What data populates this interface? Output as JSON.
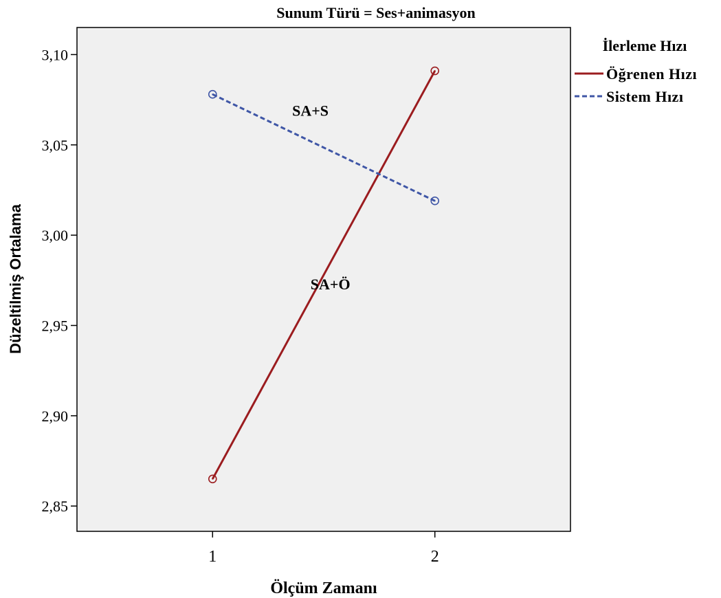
{
  "chart_data": {
    "type": "line",
    "title": "Sunum Türü = Ses+animasyon",
    "xlabel": "Ölçüm Zamanı",
    "ylabel": "Düzeltilmiş Ortalama",
    "categories": [
      "1",
      "2"
    ],
    "x_values": [
      1,
      2
    ],
    "xlim": [
      0.39,
      2.61
    ],
    "ylim": [
      2.836,
      3.115
    ],
    "yticks": [
      2.85,
      2.9,
      2.95,
      3.0,
      3.05,
      3.1
    ],
    "ytick_labels": [
      "2,85",
      "2,90",
      "2,95",
      "3,00",
      "3,05",
      "3,10"
    ],
    "grid": false,
    "legend": {
      "title": "İlerleme Hızı",
      "placement": "right"
    },
    "series": [
      {
        "name": "Öğrenen Hızı",
        "values": [
          2.865,
          3.091
        ],
        "color": "#9b1c1f",
        "dash": "solid",
        "annotation": "SA+Ö",
        "annotation_at": [
          1.53,
          2.97
        ]
      },
      {
        "name": "Sistem Hızı",
        "values": [
          3.078,
          3.019
        ],
        "color": "#3f56a6",
        "dash": "dashed",
        "annotation": "SA+S",
        "annotation_at": [
          1.44,
          3.066
        ]
      }
    ],
    "plot_background": "#f0f0f0"
  }
}
